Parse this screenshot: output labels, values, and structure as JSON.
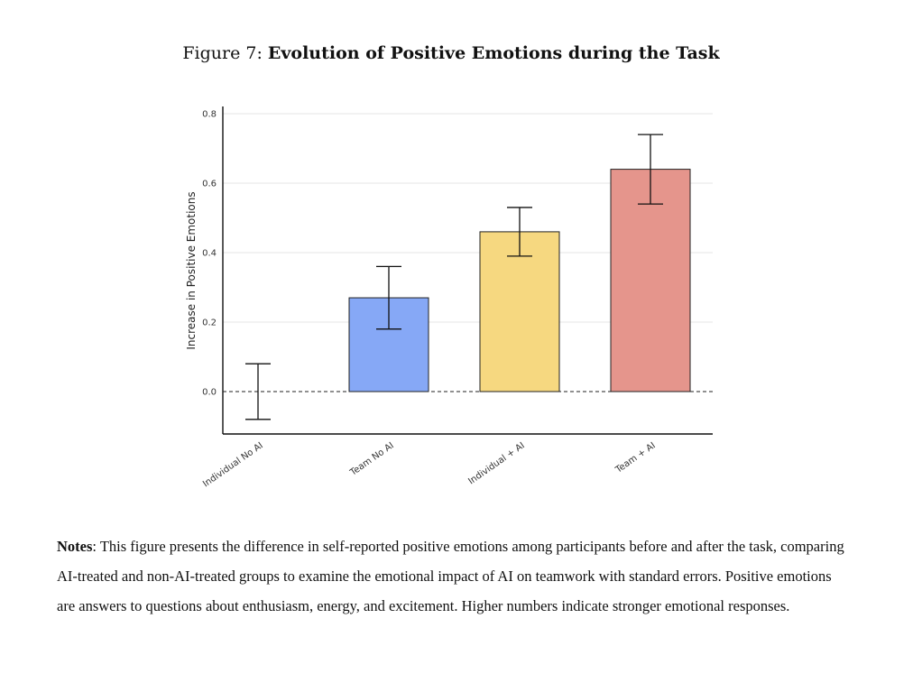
{
  "figure": {
    "label": "Figure 7:",
    "title": "Evolution of Positive Emotions during the Task"
  },
  "notes": {
    "label": "Notes",
    "text": ": This figure presents the difference in self-reported positive emotions among participants before and after the task, comparing AI-treated and non-AI-treated groups to examine the emotional impact of AI on teamwork with standard errors. Positive emotions are answers to questions about enthusiasm, energy, and excitement. Higher numbers indicate stronger emotional responses."
  },
  "chart_data": {
    "type": "bar",
    "title": "",
    "xlabel": "",
    "ylabel": "Increase in Positive Emotions",
    "categories": [
      "Individual No AI",
      "Team No AI",
      "Individual + AI",
      "Team + AI"
    ],
    "values": [
      0.0,
      0.27,
      0.46,
      0.64
    ],
    "error_low": [
      -0.08,
      0.18,
      0.39,
      0.54
    ],
    "error_high": [
      0.08,
      0.36,
      0.53,
      0.74
    ],
    "colors": [
      "#ffffff",
      "#86a8f6",
      "#f6d880",
      "#e5958c"
    ],
    "ylim": [
      -0.12,
      0.82
    ],
    "yticks": [
      "0.0",
      "0.2",
      "0.4",
      "0.6",
      "0.8"
    ],
    "ytick_values": [
      0.0,
      0.2,
      0.4,
      0.6,
      0.8
    ],
    "reference_line": 0.0,
    "grid": true
  }
}
